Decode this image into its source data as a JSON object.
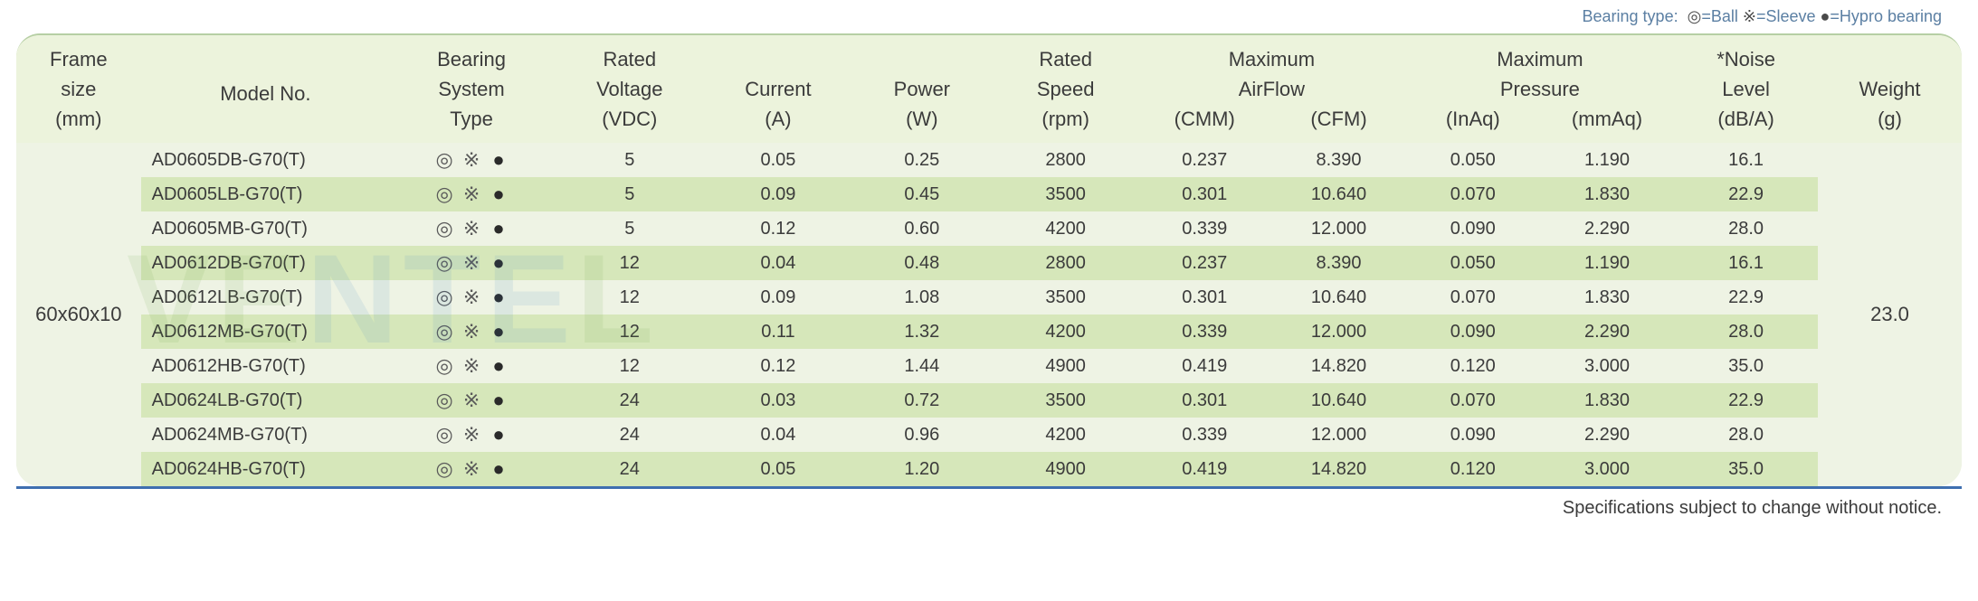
{
  "legend": {
    "prefix": "Bearing type:",
    "ball_sym": "◎",
    "ball_text": "=Ball",
    "sleeve_sym": "※",
    "sleeve_text": "=Sleeve",
    "hypro_sym": "●",
    "hypro_text": "=Hypro bearing"
  },
  "headers": {
    "frame_l1": "Frame",
    "frame_l2": "size",
    "frame_l3": "(mm)",
    "model_l1": "Model No.",
    "bearing_l1": "Bearing",
    "bearing_l2": "System",
    "bearing_l3": "Type",
    "voltage_l1": "Rated",
    "voltage_l2": "Voltage",
    "voltage_l3": "(VDC)",
    "current_l1": "Current",
    "current_l2": "(A)",
    "power_l1": "Power",
    "power_l2": "(W)",
    "speed_l1": "Rated",
    "speed_l2": "Speed",
    "speed_l3": "(rpm)",
    "airflow_l1": "Maximum",
    "airflow_l2": "AirFlow",
    "airflow_sub1": "(CMM)",
    "airflow_sub2": "(CFM)",
    "pressure_l1": "Maximum",
    "pressure_l2": "Pressure",
    "pressure_sub1": "(InAq)",
    "pressure_sub2": "(mmAq)",
    "noise_l1": "*Noise",
    "noise_l2": "Level",
    "noise_l3": "(dB/A)",
    "weight_l1": "Weight",
    "weight_l2": "(g)"
  },
  "frame_size": "60x60x10",
  "weight": "23.0",
  "bearing_symbols": {
    "s1": "◎",
    "s2": "※",
    "s3": "●"
  },
  "rows": [
    {
      "model": "AD0605DB-G70(T)",
      "vdc": "5",
      "a": "0.05",
      "w": "0.25",
      "rpm": "2800",
      "cmm": "0.237",
      "cfm": "8.390",
      "inaq": "0.050",
      "mmaq": "1.190",
      "db": "16.1"
    },
    {
      "model": "AD0605LB-G70(T)",
      "vdc": "5",
      "a": "0.09",
      "w": "0.45",
      "rpm": "3500",
      "cmm": "0.301",
      "cfm": "10.640",
      "inaq": "0.070",
      "mmaq": "1.830",
      "db": "22.9"
    },
    {
      "model": "AD0605MB-G70(T)",
      "vdc": "5",
      "a": "0.12",
      "w": "0.60",
      "rpm": "4200",
      "cmm": "0.339",
      "cfm": "12.000",
      "inaq": "0.090",
      "mmaq": "2.290",
      "db": "28.0"
    },
    {
      "model": "AD0612DB-G70(T)",
      "vdc": "12",
      "a": "0.04",
      "w": "0.48",
      "rpm": "2800",
      "cmm": "0.237",
      "cfm": "8.390",
      "inaq": "0.050",
      "mmaq": "1.190",
      "db": "16.1"
    },
    {
      "model": "AD0612LB-G70(T)",
      "vdc": "12",
      "a": "0.09",
      "w": "1.08",
      "rpm": "3500",
      "cmm": "0.301",
      "cfm": "10.640",
      "inaq": "0.070",
      "mmaq": "1.830",
      "db": "22.9"
    },
    {
      "model": "AD0612MB-G70(T)",
      "vdc": "12",
      "a": "0.11",
      "w": "1.32",
      "rpm": "4200",
      "cmm": "0.339",
      "cfm": "12.000",
      "inaq": "0.090",
      "mmaq": "2.290",
      "db": "28.0"
    },
    {
      "model": "AD0612HB-G70(T)",
      "vdc": "12",
      "a": "0.12",
      "w": "1.44",
      "rpm": "4900",
      "cmm": "0.419",
      "cfm": "14.820",
      "inaq": "0.120",
      "mmaq": "3.000",
      "db": "35.0"
    },
    {
      "model": "AD0624LB-G70(T)",
      "vdc": "24",
      "a": "0.03",
      "w": "0.72",
      "rpm": "3500",
      "cmm": "0.301",
      "cfm": "10.640",
      "inaq": "0.070",
      "mmaq": "1.830",
      "db": "22.9"
    },
    {
      "model": "AD0624MB-G70(T)",
      "vdc": "24",
      "a": "0.04",
      "w": "0.96",
      "rpm": "4200",
      "cmm": "0.339",
      "cfm": "12.000",
      "inaq": "0.090",
      "mmaq": "2.290",
      "db": "28.0"
    },
    {
      "model": "AD0624HB-G70(T)",
      "vdc": "24",
      "a": "0.05",
      "w": "1.20",
      "rpm": "4900",
      "cmm": "0.419",
      "cfm": "14.820",
      "inaq": "0.120",
      "mmaq": "3.000",
      "db": "35.0"
    }
  ],
  "footer": "Specifications subject to change without notice.",
  "colors": {
    "header_bg": "#ecf3dc",
    "row_even_bg": "#d6e7ba",
    "row_odd_bg": "#eef3e4",
    "rule": "#3f6fb0",
    "legend_text": "#5b7fa3",
    "text": "#3b3b3b"
  },
  "font_sizes": {
    "header": 22,
    "body": 20,
    "legend": 18,
    "footer": 20
  }
}
